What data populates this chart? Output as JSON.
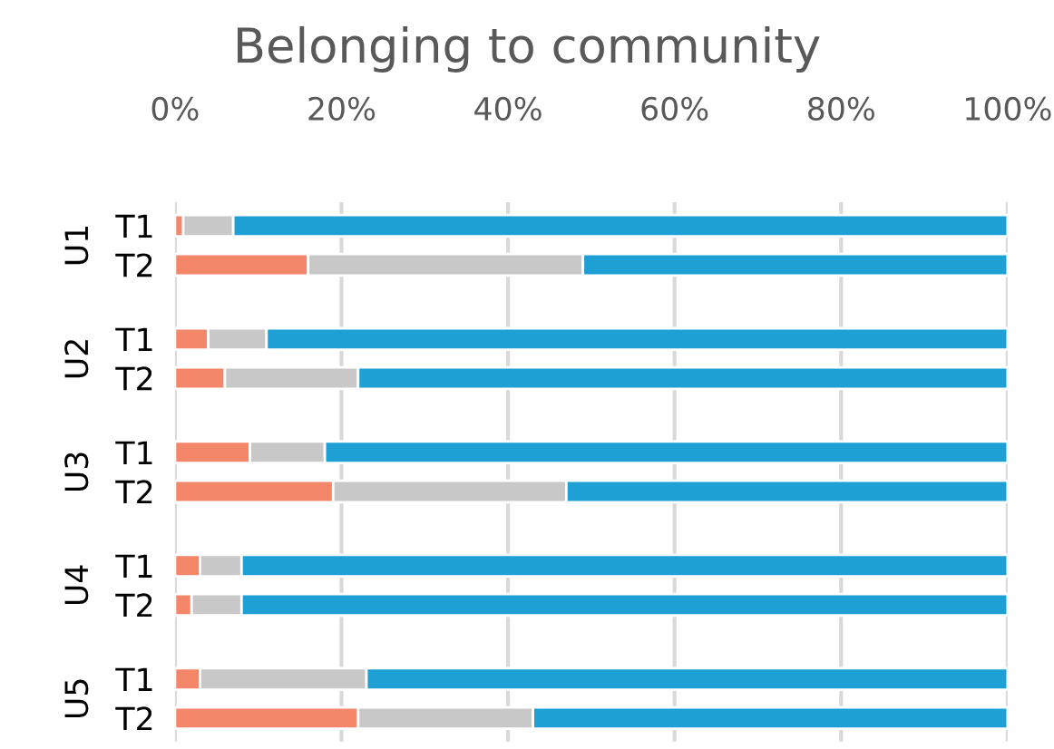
{
  "chart_data": {
    "type": "bar",
    "orientation": "horizontal",
    "stacked": true,
    "title": "Belonging to community",
    "categories": [
      "T1",
      "T2",
      "T1",
      "T2",
      "T1",
      "T2",
      "T1",
      "T2",
      "T1",
      "T2"
    ],
    "series": [
      {
        "color": "#f4866a",
        "values": [
          1,
          16,
          4,
          6,
          9,
          19,
          3,
          2,
          3,
          22
        ]
      },
      {
        "color": "#c8c8c8",
        "values": [
          6,
          33,
          7,
          16,
          9,
          28,
          5,
          6,
          20,
          21
        ]
      },
      {
        "color": "#1fa0d4",
        "values": [
          93,
          51,
          89,
          78,
          82,
          53,
          92,
          92,
          77,
          57
        ]
      }
    ],
    "xlim": [
      0,
      100
    ],
    "xticks": [
      {
        "value": 0,
        "label": "0%"
      },
      {
        "value": 20,
        "label": "20%"
      },
      {
        "value": 40,
        "label": "40%"
      },
      {
        "value": 60,
        "label": "60%"
      },
      {
        "value": 80,
        "label": "80%"
      },
      {
        "value": 100,
        "label": "100%"
      }
    ],
    "grid": "x",
    "annotations": [
      "U1",
      "U2",
      "U3",
      "U4",
      "U5"
    ]
  }
}
